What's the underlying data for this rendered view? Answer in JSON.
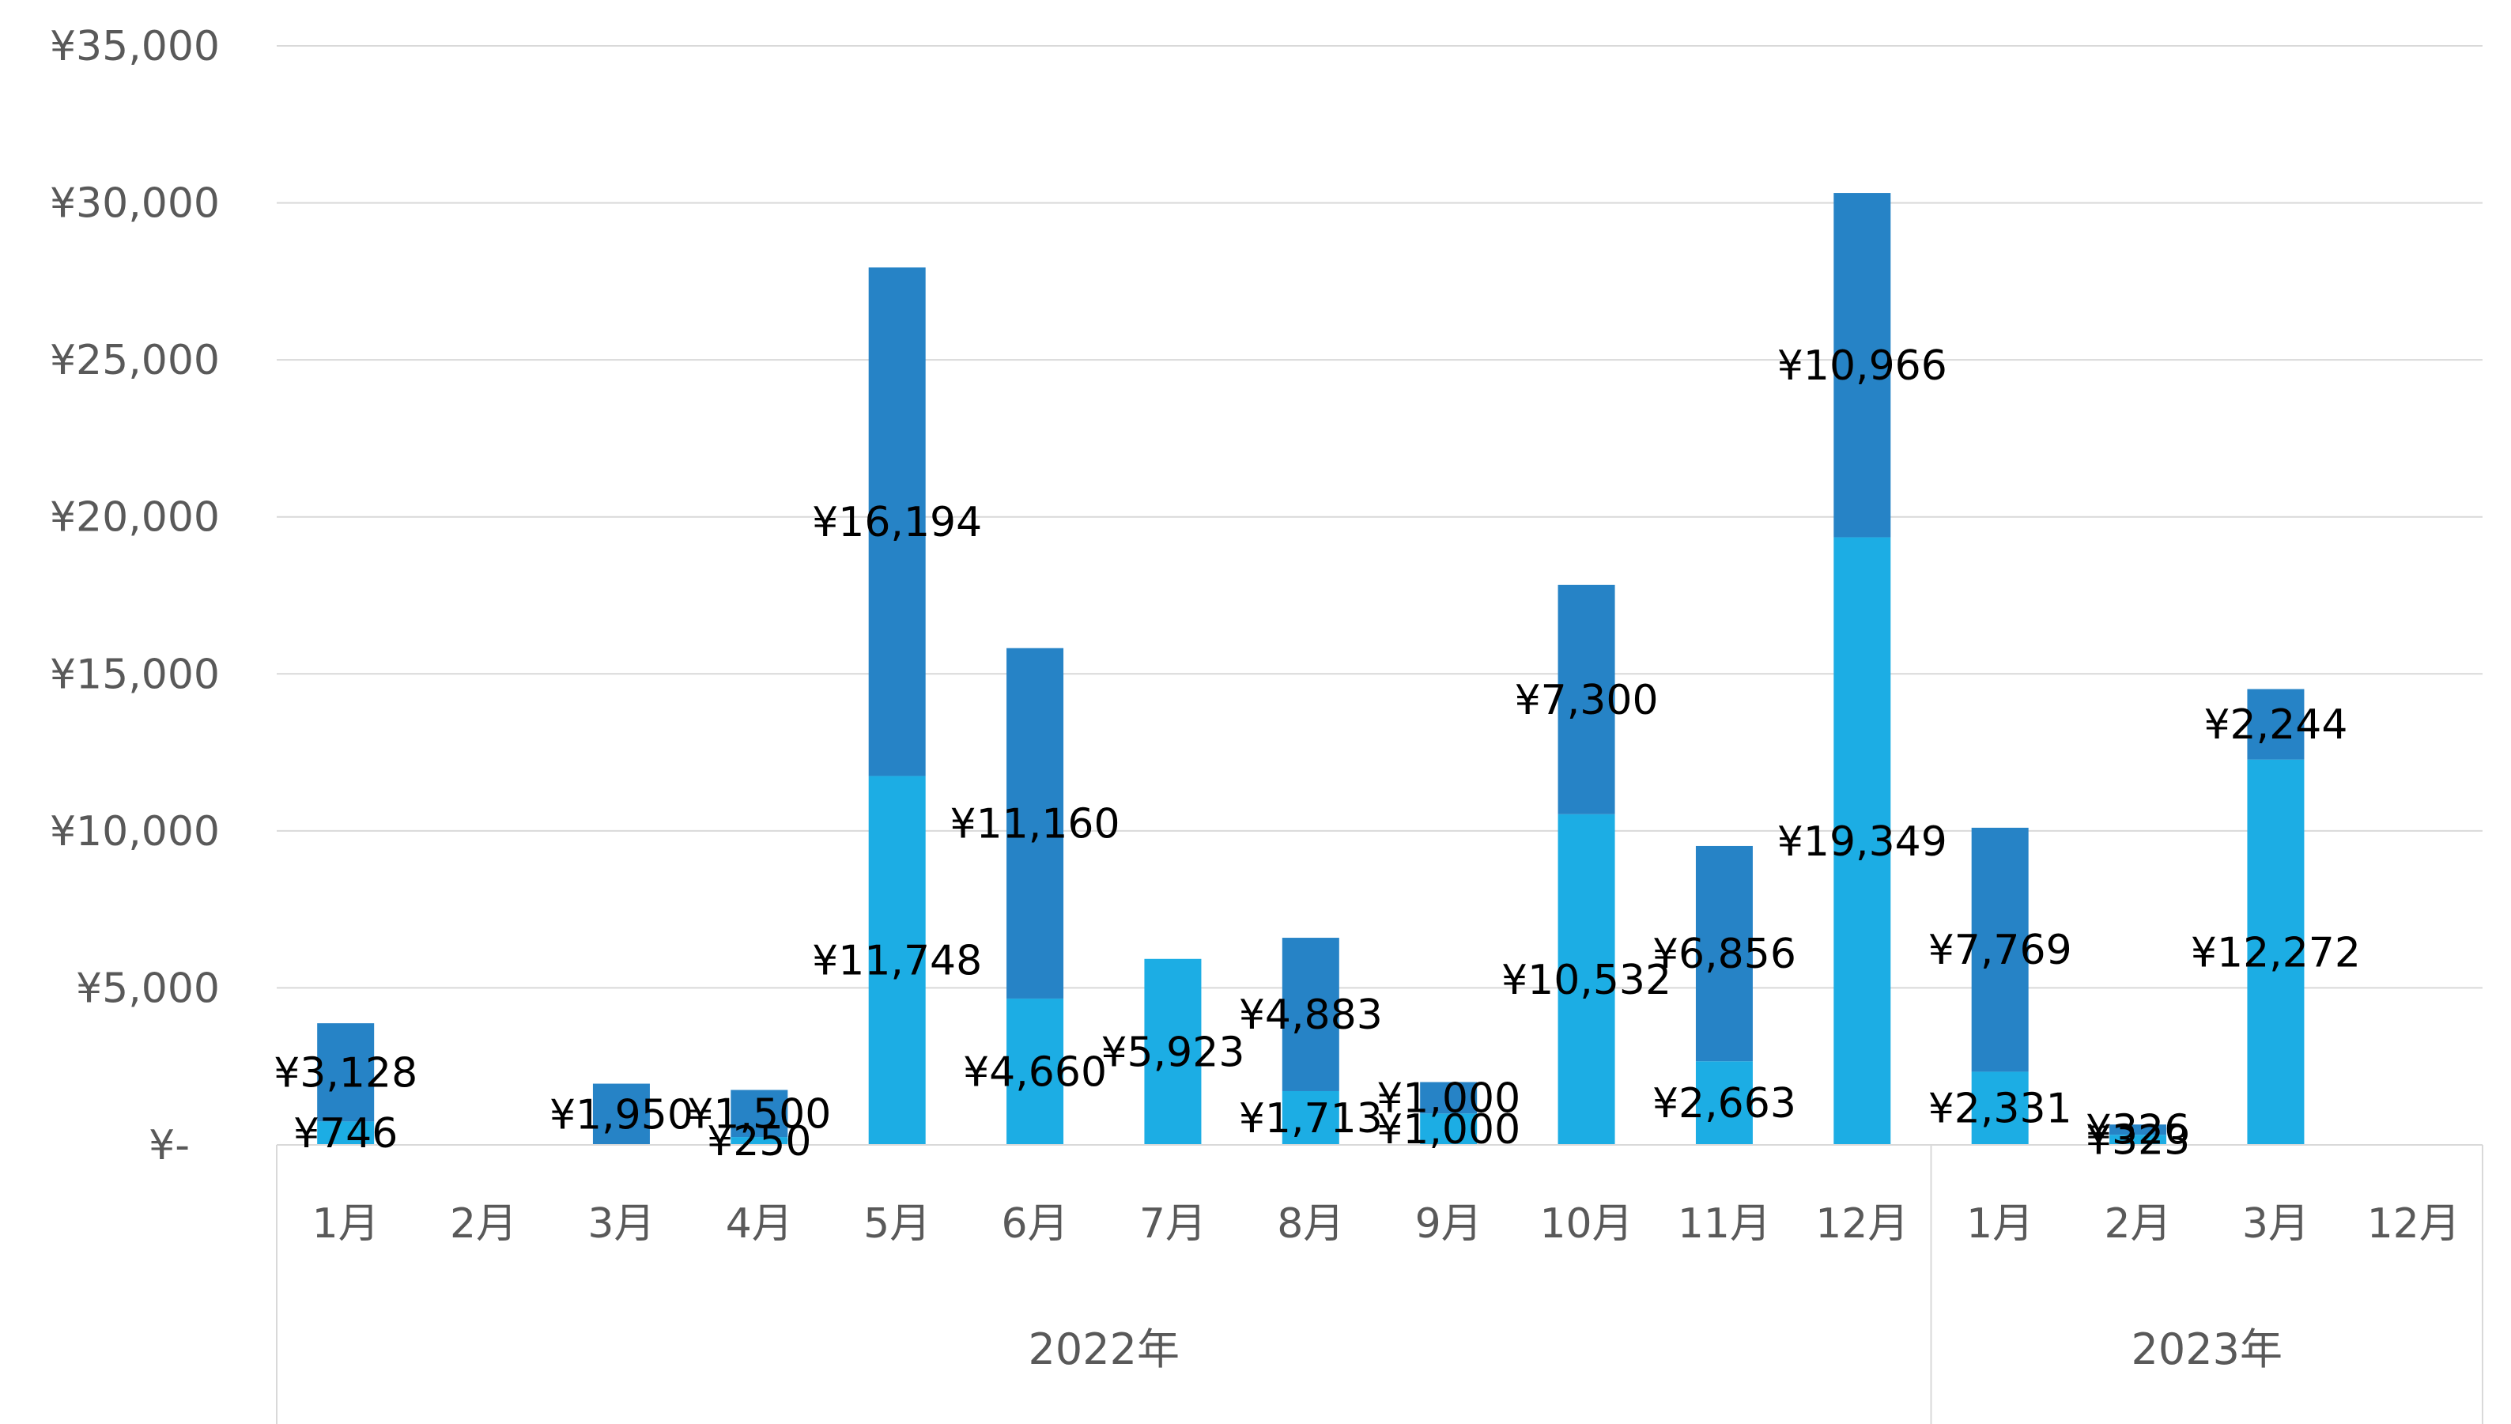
{
  "chart_data": {
    "type": "bar",
    "stacked": true,
    "title": "",
    "xlabel": "",
    "ylabel": "",
    "ylim": [
      0,
      35000
    ],
    "yticks": [
      "¥-",
      "¥5,000",
      "¥10,000",
      "¥15,000",
      "¥20,000",
      "¥25,000",
      "¥30,000",
      "¥35,000"
    ],
    "ytick_values": [
      0,
      5000,
      10000,
      15000,
      20000,
      25000,
      30000,
      35000
    ],
    "grid": true,
    "legend": "none",
    "categories": [
      "1月",
      "2月",
      "3月",
      "4月",
      "5月",
      "6月",
      "7月",
      "8月",
      "9月",
      "10月",
      "11月",
      "12月",
      "1月",
      "2月",
      "3月",
      "12月"
    ],
    "groups": [
      {
        "label": "2022年",
        "count": 12
      },
      {
        "label": "2023年",
        "count": 4
      }
    ],
    "colors": {
      "series1": "#1CADE4",
      "series2": "#2683C6"
    },
    "series": [
      {
        "values": [
          746,
          null,
          null,
          250,
          11748,
          4660,
          5923,
          1713,
          1000,
          10532,
          2663,
          19349,
          2331,
          323,
          12272,
          null
        ],
        "labels": [
          "¥746",
          "",
          "",
          "¥250",
          "¥11,748",
          "¥4,660",
          "¥5,923",
          "¥1,713",
          "¥1,000",
          "¥10,532",
          "¥2,663",
          "¥19,349",
          "¥2,331",
          "¥323",
          "¥12,272",
          ""
        ]
      },
      {
        "values": [
          3128,
          null,
          1950,
          1500,
          16194,
          11160,
          null,
          4883,
          1000,
          7300,
          6856,
          10966,
          7769,
          326,
          2244,
          null
        ],
        "labels": [
          "¥3,128",
          "",
          "¥1,950",
          "¥1,500",
          "¥16,194",
          "¥11,160",
          "",
          "¥4,883",
          "¥1,000",
          "¥7,300",
          "¥6,856",
          "¥10,966",
          "¥7,769",
          "¥326",
          "¥2,244",
          ""
        ]
      }
    ]
  }
}
